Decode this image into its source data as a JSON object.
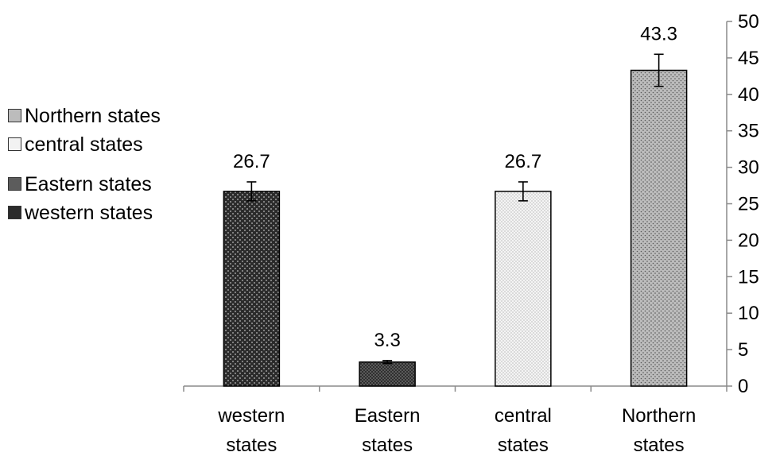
{
  "chart_data": {
    "type": "bar",
    "categories": [
      "western states",
      "Eastern states",
      "central states",
      "Northern states"
    ],
    "values": [
      26.7,
      3.3,
      26.7,
      43.3
    ],
    "data_labels": [
      "26.7",
      "3.3",
      "26.7",
      "43.3"
    ],
    "error": [
      1.3,
      0.2,
      1.3,
      2.2
    ],
    "ylim": [
      0,
      50
    ],
    "yticks": [
      "0",
      "5",
      "10",
      "15",
      "20",
      "25",
      "30",
      "35",
      "40",
      "45",
      "50"
    ],
    "y_axis_side": "right",
    "grid": false,
    "legend_position": "left",
    "legend": [
      "Northern states",
      "central states",
      "Eastern states",
      "western states"
    ],
    "colors": {
      "western states": "#2b2b2b",
      "Eastern states": "#5c5c5c",
      "central states": "#f0f0f0",
      "Northern states": "#b7b7b7"
    }
  }
}
